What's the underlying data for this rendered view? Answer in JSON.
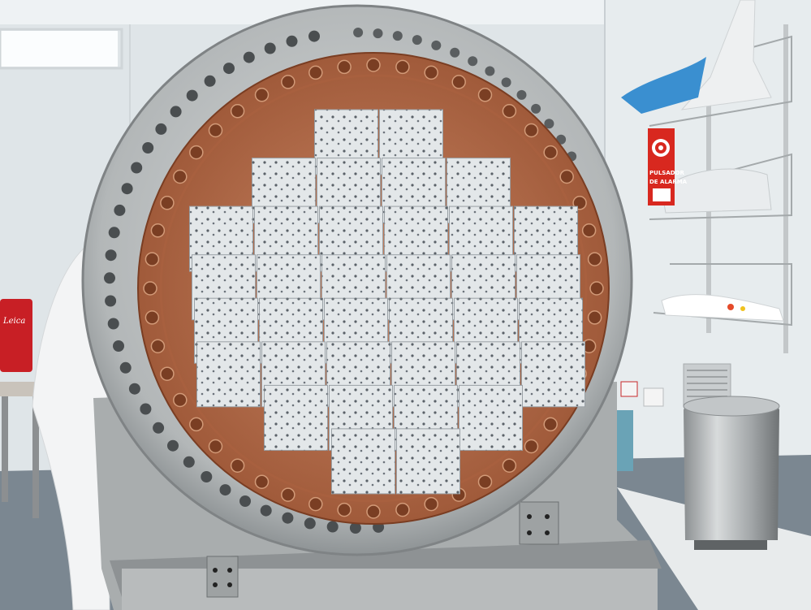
{
  "scene": {
    "subject": "cryostat-focal-plane",
    "colors": {
      "wall": "#dfe5e8",
      "ceiling": "#eef2f4",
      "floor": "#7b8791",
      "steel": "#b9bcbd",
      "steel_dark": "#8d9193",
      "copper": "#b9714a",
      "copper_dark": "#8a4a2d",
      "ccd": "#e3e7e9",
      "dot": "#5a6168",
      "sign_red": "#d8281f",
      "case_red": "#c81f25"
    },
    "sign": {
      "line1": "PULSADOR",
      "line2": "DE ALARMA"
    },
    "case_label": "Leica",
    "ccd_grid": {
      "columns_per_row": [
        2,
        4,
        6,
        6,
        6,
        6,
        4,
        2
      ]
    }
  }
}
